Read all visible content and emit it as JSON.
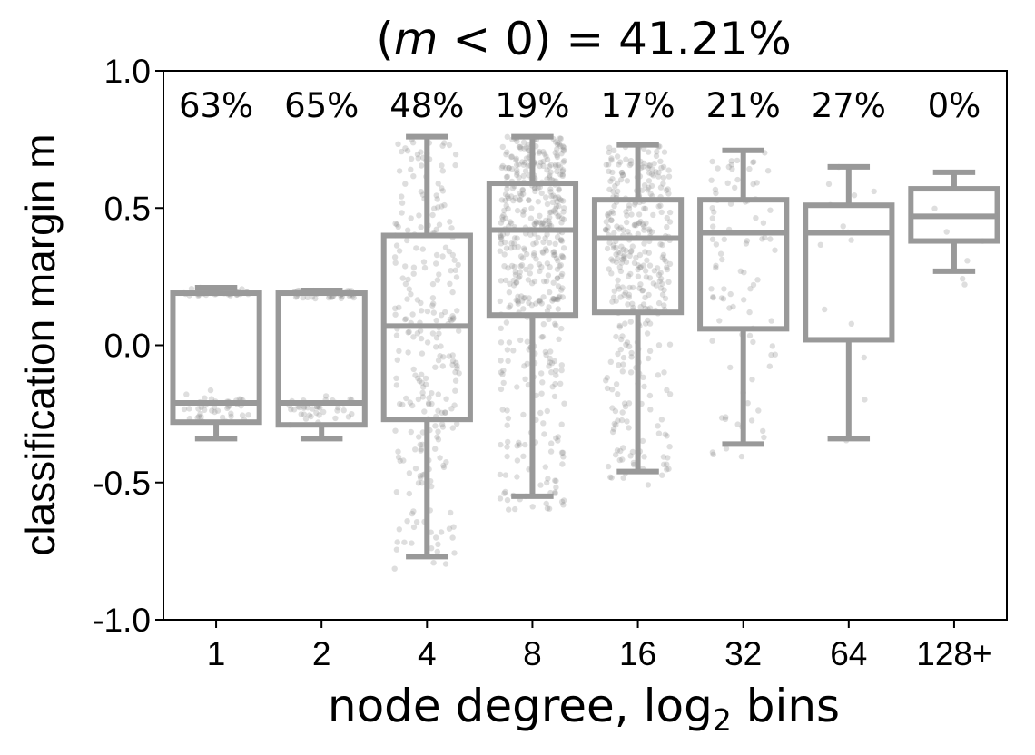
{
  "chart_data": {
    "type": "box",
    "title_parts": {
      "open": "(",
      "var": "m",
      "rest": " < 0) = 41.21%"
    },
    "xlabel_main": "node degree, log",
    "xlabel_sub": "2",
    "xlabel_end": " bins",
    "ylabel": "classification margin m",
    "ylim": [
      -1.0,
      1.0
    ],
    "yticks": [
      1.0,
      0.5,
      0.0,
      -0.5,
      -1.0
    ],
    "ytick_labels": [
      "1.0",
      "0.5",
      "0.0",
      "-0.5",
      "-1.0"
    ],
    "categories": [
      "1",
      "2",
      "4",
      "8",
      "16",
      "32",
      "64",
      "128+"
    ],
    "negative_pct_labels": [
      "63%",
      "65%",
      "48%",
      "19%",
      "17%",
      "21%",
      "27%",
      "0%"
    ],
    "boxes": [
      {
        "q1": -0.28,
        "median": -0.21,
        "q3": 0.19,
        "whisker_low": -0.34,
        "whisker_high": 0.21
      },
      {
        "q1": -0.29,
        "median": -0.21,
        "q3": 0.19,
        "whisker_low": -0.34,
        "whisker_high": 0.2
      },
      {
        "q1": -0.27,
        "median": 0.07,
        "q3": 0.4,
        "whisker_low": -0.77,
        "whisker_high": 0.76
      },
      {
        "q1": 0.11,
        "median": 0.42,
        "q3": 0.59,
        "whisker_low": -0.55,
        "whisker_high": 0.76
      },
      {
        "q1": 0.12,
        "median": 0.39,
        "q3": 0.53,
        "whisker_low": -0.46,
        "whisker_high": 0.73
      },
      {
        "q1": 0.06,
        "median": 0.41,
        "q3": 0.53,
        "whisker_low": -0.36,
        "whisker_high": 0.71
      },
      {
        "q1": 0.02,
        "median": 0.41,
        "q3": 0.51,
        "whisker_low": -0.34,
        "whisker_high": 0.65
      },
      {
        "q1": 0.38,
        "median": 0.47,
        "q3": 0.57,
        "whisker_low": 0.27,
        "whisker_high": 0.63
      }
    ],
    "box_color": "#999999",
    "point_color": "#888888",
    "grid": false
  }
}
